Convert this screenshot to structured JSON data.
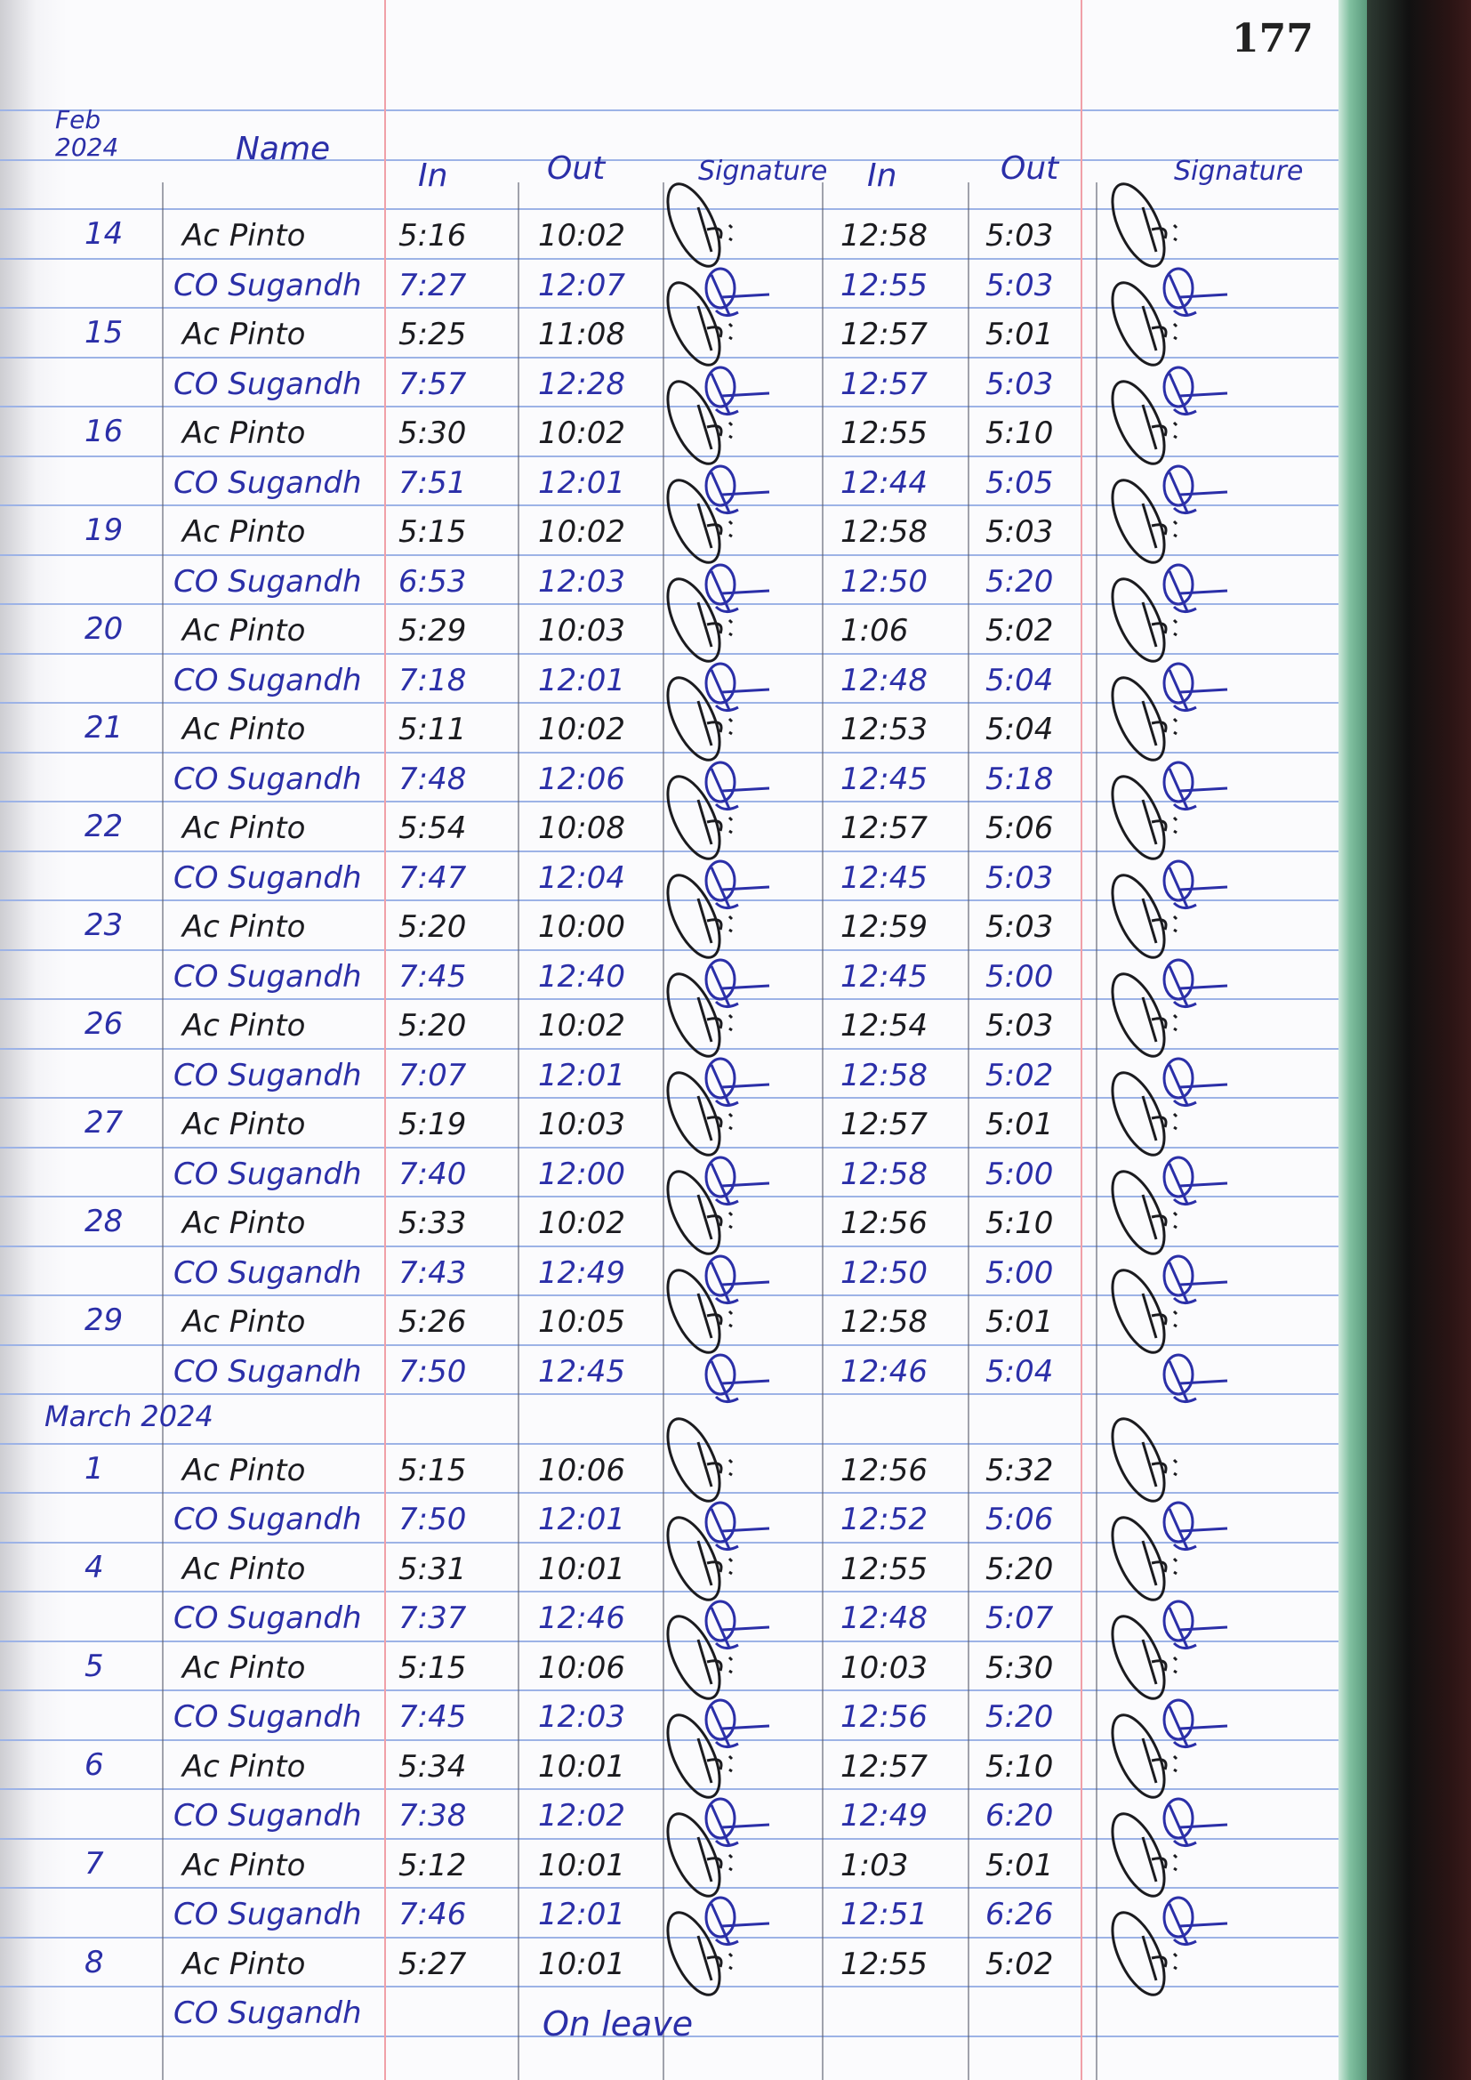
{
  "page_number": "177",
  "header": {
    "period": "Feb 2024",
    "name": "Name",
    "in_1": "In",
    "out_1": "Out",
    "signature_1": "Signature",
    "in_2": "In",
    "out_2": "Out",
    "signature_2": "Signature"
  },
  "colors": {
    "black_ink": "#1b1b1f",
    "blue_ink": "#2b2fa8",
    "ruled_line": "#9db3e6",
    "margin_line": "#f0a0a8"
  },
  "sections": [
    {
      "label": "",
      "days": [
        {
          "date": "14",
          "entries": [
            {
              "name": "Ac Pinto",
              "in_1": "5:16",
              "out_1": "10:02",
              "in_2": "12:58",
              "out_2": "5:03"
            },
            {
              "name": "CO Sugandh",
              "in_1": "7:27",
              "out_1": "12:07",
              "in_2": "12:55",
              "out_2": "5:03"
            }
          ]
        },
        {
          "date": "15",
          "entries": [
            {
              "name": "Ac Pinto",
              "in_1": "5:25",
              "out_1": "11:08",
              "in_2": "12:57",
              "out_2": "5:01"
            },
            {
              "name": "CO Sugandh",
              "in_1": "7:57",
              "out_1": "12:28",
              "in_2": "12:57",
              "out_2": "5:03"
            }
          ]
        },
        {
          "date": "16",
          "entries": [
            {
              "name": "Ac Pinto",
              "in_1": "5:30",
              "out_1": "10:02",
              "in_2": "12:55",
              "out_2": "5:10"
            },
            {
              "name": "CO Sugandh",
              "in_1": "7:51",
              "out_1": "12:01",
              "in_2": "12:44",
              "out_2": "5:05"
            }
          ]
        },
        {
          "date": "19",
          "entries": [
            {
              "name": "Ac Pinto",
              "in_1": "5:15",
              "out_1": "10:02",
              "in_2": "12:58",
              "out_2": "5:03"
            },
            {
              "name": "CO Sugandh",
              "in_1": "6:53",
              "out_1": "12:03",
              "in_2": "12:50",
              "out_2": "5:20"
            }
          ]
        },
        {
          "date": "20",
          "entries": [
            {
              "name": "Ac Pinto",
              "in_1": "5:29",
              "out_1": "10:03",
              "in_2": "1:06",
              "out_2": "5:02"
            },
            {
              "name": "CO Sugandh",
              "in_1": "7:18",
              "out_1": "12:01",
              "in_2": "12:48",
              "out_2": "5:04"
            }
          ]
        },
        {
          "date": "21",
          "entries": [
            {
              "name": "Ac Pinto",
              "in_1": "5:11",
              "out_1": "10:02",
              "in_2": "12:53",
              "out_2": "5:04"
            },
            {
              "name": "CO Sugandh",
              "in_1": "7:48",
              "out_1": "12:06",
              "in_2": "12:45",
              "out_2": "5:18"
            }
          ]
        },
        {
          "date": "22",
          "entries": [
            {
              "name": "Ac Pinto",
              "in_1": "5:54",
              "out_1": "10:08",
              "in_2": "12:57",
              "out_2": "5:06"
            },
            {
              "name": "CO Sugandh",
              "in_1": "7:47",
              "out_1": "12:04",
              "in_2": "12:45",
              "out_2": "5:03"
            }
          ]
        },
        {
          "date": "23",
          "entries": [
            {
              "name": "Ac Pinto",
              "in_1": "5:20",
              "out_1": "10:00",
              "in_2": "12:59",
              "out_2": "5:03"
            },
            {
              "name": "CO Sugandh",
              "in_1": "7:45",
              "out_1": "12:40",
              "in_2": "12:45",
              "out_2": "5:00"
            }
          ]
        },
        {
          "date": "26",
          "entries": [
            {
              "name": "Ac Pinto",
              "in_1": "5:20",
              "out_1": "10:02",
              "in_2": "12:54",
              "out_2": "5:03"
            },
            {
              "name": "CO Sugandh",
              "in_1": "7:07",
              "out_1": "12:01",
              "in_2": "12:58",
              "out_2": "5:02"
            }
          ]
        },
        {
          "date": "27",
          "entries": [
            {
              "name": "Ac Pinto",
              "in_1": "5:19",
              "out_1": "10:03",
              "in_2": "12:57",
              "out_2": "5:01"
            },
            {
              "name": "CO Sugandh",
              "in_1": "7:40",
              "out_1": "12:00",
              "in_2": "12:58",
              "out_2": "5:00"
            }
          ]
        },
        {
          "date": "28",
          "entries": [
            {
              "name": "Ac Pinto",
              "in_1": "5:33",
              "out_1": "10:02",
              "in_2": "12:56",
              "out_2": "5:10"
            },
            {
              "name": "CO Sugandh",
              "in_1": "7:43",
              "out_1": "12:49",
              "in_2": "12:50",
              "out_2": "5:00"
            }
          ]
        },
        {
          "date": "29",
          "entries": [
            {
              "name": "Ac Pinto",
              "in_1": "5:26",
              "out_1": "10:05",
              "in_2": "12:58",
              "out_2": "5:01"
            },
            {
              "name": "CO Sugandh",
              "in_1": "7:50",
              "out_1": "12:45",
              "in_2": "12:46",
              "out_2": "5:04"
            }
          ]
        }
      ]
    },
    {
      "label": "March 2024",
      "days": [
        {
          "date": "1",
          "entries": [
            {
              "name": "Ac Pinto",
              "in_1": "5:15",
              "out_1": "10:06",
              "in_2": "12:56",
              "out_2": "5:32"
            },
            {
              "name": "CO Sugandh",
              "in_1": "7:50",
              "out_1": "12:01",
              "in_2": "12:52",
              "out_2": "5:06"
            }
          ]
        },
        {
          "date": "4",
          "entries": [
            {
              "name": "Ac Pinto",
              "in_1": "5:31",
              "out_1": "10:01",
              "in_2": "12:55",
              "out_2": "5:20"
            },
            {
              "name": "CO Sugandh",
              "in_1": "7:37",
              "out_1": "12:46",
              "in_2": "12:48",
              "out_2": "5:07"
            }
          ]
        },
        {
          "date": "5",
          "entries": [
            {
              "name": "Ac Pinto",
              "in_1": "5:15",
              "out_1": "10:06",
              "in_2": "10:03",
              "out_2": "5:30"
            },
            {
              "name": "CO Sugandh",
              "in_1": "7:45",
              "out_1": "12:03",
              "in_2": "12:56",
              "out_2": "5:20"
            }
          ]
        },
        {
          "date": "6",
          "entries": [
            {
              "name": "Ac Pinto",
              "in_1": "5:34",
              "out_1": "10:01",
              "in_2": "12:57",
              "out_2": "5:10"
            },
            {
              "name": "CO Sugandh",
              "in_1": "7:38",
              "out_1": "12:02",
              "in_2": "12:49",
              "out_2": "6:20"
            }
          ]
        },
        {
          "date": "7",
          "entries": [
            {
              "name": "Ac Pinto",
              "in_1": "5:12",
              "out_1": "10:01",
              "in_2": "1:03",
              "out_2": "5:01"
            },
            {
              "name": "CO Sugandh",
              "in_1": "7:46",
              "out_1": "12:01",
              "in_2": "12:51",
              "out_2": "6:26"
            }
          ]
        },
        {
          "date": "8",
          "entries": [
            {
              "name": "Ac Pinto",
              "in_1": "5:27",
              "out_1": "10:01",
              "in_2": "12:55",
              "out_2": "5:02"
            },
            {
              "name": "CO Sugandh",
              "note": "On leave"
            }
          ]
        }
      ]
    }
  ]
}
